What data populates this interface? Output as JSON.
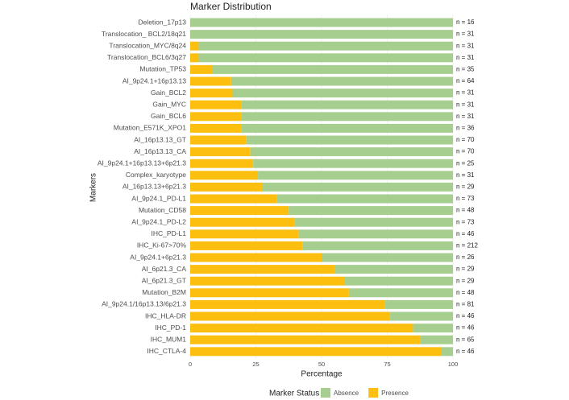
{
  "chart_data": {
    "type": "stacked-bar-horizontal",
    "title": "Marker Distribution",
    "xlabel": "Percentage",
    "ylabel": "Markers",
    "legend_title": "Marker Status",
    "legend_position": "bottom",
    "grid": true,
    "categories": [
      "Deletion_17p13",
      "Translocation_ BCL2/18q21",
      "Translocation_MYC/8q24",
      "Translocation_BCL6/3q27",
      "Mutation_TP53",
      "AI_9p24.1+16p13.13",
      "Gain_BCL2",
      "Gain_MYC",
      "Gain_BCL6",
      "Mutation_E571K_XPO1",
      "AI_16p13.13_GT",
      "AI_16p13.13_CA",
      "AI_9p24.1+16p13.13+6p21.3",
      "Complex_karyotype",
      "AI_16p13.13+6p21.3",
      "AI_9p24.1_PD-L1",
      "Mutation_CD58",
      "AI_9p24.1_PD-L2",
      "IHC_PD-L1",
      "IHC_Ki-67>70%",
      "AI_9p24.1+6p21.3",
      "AI_6p21.3_CA",
      "AI_6p21.3_GT",
      "Mutation_B2M",
      "AI_9p24.1/16p13.13/6p21.3",
      "IHC_HLA-DR",
      "IHC_PD-1",
      "IHC_MUM1",
      "IHC_CTLA-4"
    ],
    "series": [
      {
        "name": "Presence",
        "color": "#fdbf0f",
        "values": [
          0,
          0,
          3.2,
          3.2,
          8.6,
          15.6,
          16.1,
          19.4,
          19.4,
          19.4,
          21.4,
          22.9,
          24,
          25.8,
          27.6,
          32.9,
          37.5,
          39.7,
          41.3,
          42.9,
          50,
          55.2,
          58.6,
          60.4,
          74.1,
          76.1,
          84.8,
          87.7,
          95.7
        ]
      },
      {
        "name": "Absence",
        "color": "#a6cf8f",
        "values": [
          100,
          100,
          96.8,
          96.8,
          91.4,
          84.4,
          83.9,
          80.6,
          80.6,
          80.6,
          78.6,
          77.1,
          76,
          74.2,
          72.4,
          67.1,
          62.5,
          60.3,
          58.7,
          57.1,
          50,
          44.8,
          41.4,
          39.6,
          25.9,
          23.9,
          15.2,
          12.3,
          4.3
        ]
      }
    ],
    "legend_order": [
      1,
      0
    ],
    "n_labels": [
      "n = 16",
      "n = 31",
      "n = 31",
      "n = 31",
      "n = 35",
      "n = 64",
      "n = 31",
      "n = 31",
      "n = 31",
      "n = 36",
      "n = 70",
      "n = 70",
      "n = 25",
      "n = 31",
      "n = 29",
      "n = 73",
      "n = 48",
      "n = 73",
      "n = 46",
      "n = 212",
      "n = 26",
      "n = 29",
      "n = 29",
      "n = 48",
      "n = 81",
      "n = 46",
      "n = 46",
      "n = 65",
      "n = 46"
    ],
    "xlim": [
      0,
      100
    ],
    "xticks": [
      0,
      25,
      50,
      75,
      100
    ]
  }
}
